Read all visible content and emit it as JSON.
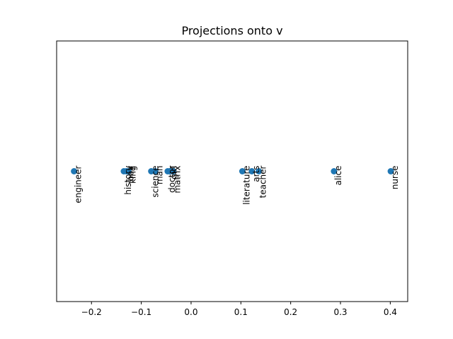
{
  "chart_data": {
    "type": "scatter",
    "title": "Projections onto v",
    "xlabel": "",
    "ylabel": "",
    "xlim": [
      -0.27,
      0.435
    ],
    "ylim": [
      -1,
      1
    ],
    "grid": false,
    "x_ticks": [
      -0.2,
      -0.1,
      0.0,
      0.1,
      0.2,
      0.3,
      0.4
    ],
    "x_tick_labels": [
      "−0.2",
      "−0.1",
      "0.0",
      "0.1",
      "0.2",
      "0.3",
      "0.4"
    ],
    "y_ticks": [],
    "point_color": "#1f77b4",
    "points": [
      {
        "label": "engineer",
        "x": -0.235,
        "y": 0
      },
      {
        "label": "history",
        "x": -0.135,
        "y": 0
      },
      {
        "label": "boy",
        "x": -0.13,
        "y": 0
      },
      {
        "label": "king",
        "x": -0.126,
        "y": 0
      },
      {
        "label": "science",
        "x": -0.08,
        "y": 0
      },
      {
        "label": "man",
        "x": -0.072,
        "y": 0
      },
      {
        "label": "doctor",
        "x": -0.047,
        "y": 0
      },
      {
        "label": "girl",
        "x": -0.043,
        "y": 0
      },
      {
        "label": "matrix",
        "x": -0.036,
        "y": 0
      },
      {
        "label": "literature",
        "x": 0.103,
        "y": 0
      },
      {
        "label": "arts",
        "x": 0.122,
        "y": 0
      },
      {
        "label": "teacher",
        "x": 0.136,
        "y": 0
      },
      {
        "label": "alice",
        "x": 0.287,
        "y": 0
      },
      {
        "label": "nurse",
        "x": 0.401,
        "y": 0
      }
    ]
  }
}
